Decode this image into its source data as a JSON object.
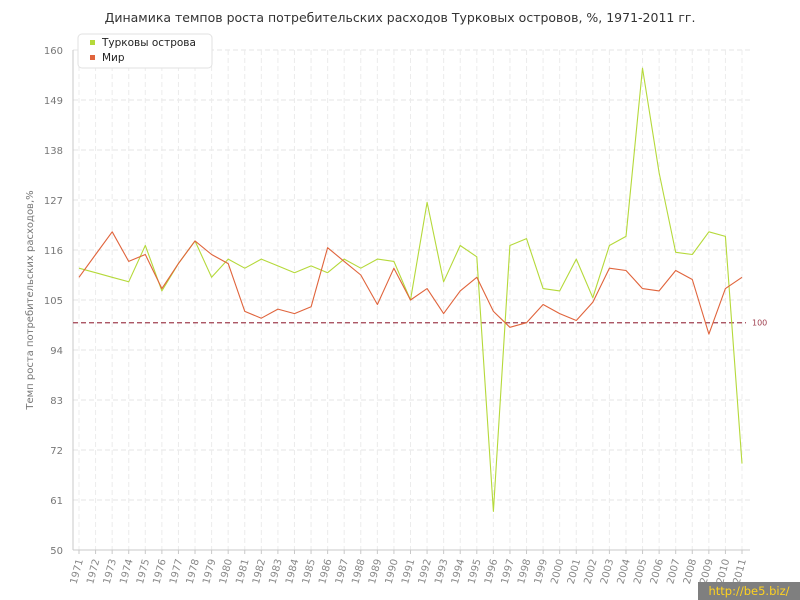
{
  "watermark": "http://be5.biz/",
  "chart_data": {
    "type": "line",
    "title": "Динамика темпов роста потребительских расходов Турковых островов, %, 1971-2011 гг.",
    "ylabel": "Темп роста потребительских расходов,%",
    "xlabel": "",
    "ylim": [
      50,
      160
    ],
    "yticks": [
      50,
      61,
      72,
      83,
      94,
      105,
      116,
      127,
      138,
      149,
      160
    ],
    "grid": true,
    "legend": "top-left",
    "x": [
      "1971",
      "1972",
      "1973",
      "1974",
      "1975",
      "1976",
      "1977",
      "1978",
      "1979",
      "1980",
      "1981",
      "1982",
      "1983",
      "1984",
      "1985",
      "1986",
      "1987",
      "1988",
      "1989",
      "1990",
      "1991",
      "1992",
      "1993",
      "1994",
      "1995",
      "1996",
      "1997",
      "1998",
      "1999",
      "2000",
      "2001",
      "2002",
      "2003",
      "2004",
      "2005",
      "2006",
      "2007",
      "2008",
      "2009",
      "2010",
      "2011"
    ],
    "series": [
      {
        "name": "Турковы острова",
        "color": "#b5d93a",
        "values": [
          112,
          111,
          110,
          109,
          117,
          107,
          113,
          118,
          110,
          114,
          112,
          114,
          112.5,
          111,
          112.5,
          111,
          114,
          112,
          114,
          113.5,
          105,
          126.5,
          109,
          117,
          114.5,
          58.5,
          117,
          118.5,
          107.5,
          107,
          114,
          105.5,
          117,
          119,
          156,
          133,
          115.5,
          115,
          120,
          119,
          69
        ]
      },
      {
        "name": "Мир",
        "color": "#e0643c",
        "values": [
          110,
          115,
          120,
          113.5,
          115,
          107.5,
          113,
          118,
          115,
          113,
          102.5,
          101,
          103,
          102,
          103.5,
          116.5,
          113.5,
          110.5,
          104,
          112,
          105,
          107.5,
          102,
          107,
          110,
          102.5,
          99,
          100,
          104,
          102,
          100.5,
          104.5,
          112,
          111.5,
          107.5,
          107,
          111.5,
          109.5,
          97.5,
          107.5,
          110
        ]
      }
    ],
    "reference_line": {
      "value": 100,
      "label": "100",
      "color": "#a04050"
    }
  }
}
